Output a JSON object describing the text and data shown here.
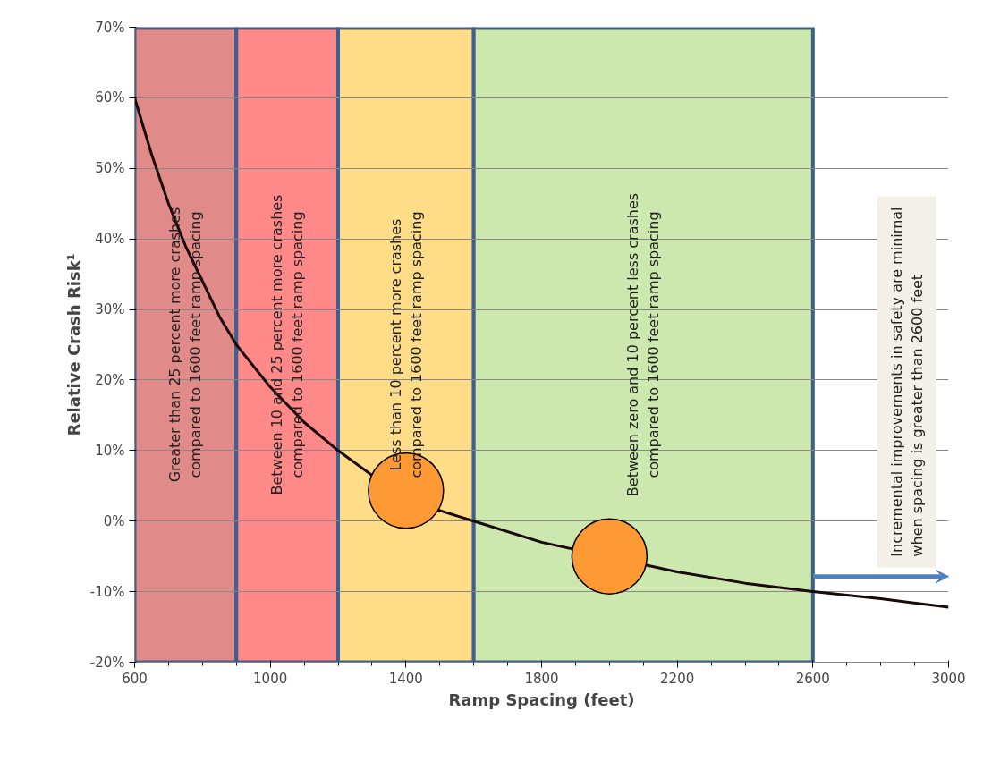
{
  "chart_data": {
    "type": "line",
    "xlabel": "Ramp Spacing (feet)",
    "ylabel": "Relative Crash Risk¹",
    "xlim": [
      600,
      3000
    ],
    "xticks": [
      600,
      1000,
      1400,
      1800,
      2200,
      2600,
      3000
    ],
    "ylim": [
      -20,
      70
    ],
    "yticks": [
      {
        "value": -20,
        "label": "-20%"
      },
      {
        "value": -10,
        "label": "-10%"
      },
      {
        "value": 0,
        "label": "0%"
      },
      {
        "value": 10,
        "label": "10%"
      },
      {
        "value": 20,
        "label": "20%"
      },
      {
        "value": 30,
        "label": "30%"
      },
      {
        "value": 40,
        "label": "40%"
      },
      {
        "value": 50,
        "label": "50%"
      },
      {
        "value": 60,
        "label": "60%"
      },
      {
        "value": 70,
        "label": "70%"
      }
    ],
    "grid": "y",
    "line_style": "solid",
    "series": [
      {
        "color": "#1a0a0a",
        "x": [
          600,
          650,
          700,
          750,
          800,
          850,
          900,
          1000,
          1100,
          1200,
          1300,
          1500,
          1600,
          1800,
          2200,
          2400,
          2600,
          2800,
          3000
        ],
        "values": [
          60,
          52,
          45,
          39,
          34,
          29,
          25,
          19,
          14,
          10,
          6.5,
          1.5,
          0,
          -3,
          -7.2,
          -8.8,
          -10,
          -11,
          -12.2
        ]
      },
      {
        "type": "scatter",
        "color": "#ff9933",
        "marker": "circle",
        "x": [
          1400,
          2000
        ],
        "values": [
          4.3,
          -5
        ]
      }
    ],
    "bands": [
      {
        "axis": "x",
        "from": 600,
        "to": 900,
        "color": "#e08a8a",
        "label": "Greater than 25 percent more crashes\ncompared to 1600 feet ramp spacing"
      },
      {
        "axis": "x",
        "from": 900,
        "to": 1200,
        "color": "#ff8888",
        "label": "Between 10 and 25 percent more crashes\ncompared to 1600 feet ramp spacing"
      },
      {
        "axis": "x",
        "from": 1200,
        "to": 1600,
        "color": "#ffdd88",
        "label": "Less than 10 percent more crashes\ncompared to 1600 feet ramp spacing"
      },
      {
        "axis": "x",
        "from": 1600,
        "to": 2600,
        "color": "#cce8ae",
        "label": "Between zero and 10 percent less crashes\ncompared to 1600 feet ramp spacing"
      }
    ],
    "annotations": [
      "Incremental improvements in safety are minimal\nwhen spacing is greater than 2600 feet"
    ]
  }
}
